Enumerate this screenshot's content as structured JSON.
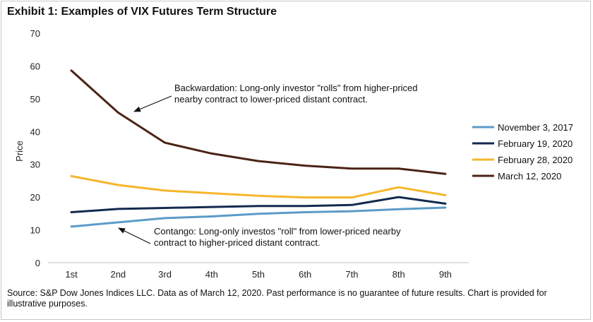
{
  "title": "Exhibit 1: Examples of VIX Futures Term Structure",
  "source_note": "Source: S&P Dow Jones Indices LLC. Data as of March 12, 2020. Past performance is no guarantee of future results. Chart is provided for illustrative purposes.",
  "chart_data": {
    "type": "line",
    "title": "Exhibit 1: Examples of VIX Futures Term Structure",
    "xlabel": "",
    "ylabel": "Price",
    "categories": [
      "1st",
      "2nd",
      "3rd",
      "4th",
      "5th",
      "6th",
      "7th",
      "8th",
      "9th"
    ],
    "ylim": [
      0,
      70
    ],
    "yticks": [
      0,
      10,
      20,
      30,
      40,
      50,
      60,
      70
    ],
    "grid": false,
    "legend_position": "right",
    "series": [
      {
        "name": "November 3, 2017",
        "color": "#5b9bc8",
        "values": [
          11.0,
          12.3,
          13.6,
          14.1,
          14.9,
          15.4,
          15.7,
          16.3,
          16.8
        ]
      },
      {
        "name": "February 19, 2020",
        "color": "#132a4f",
        "values": [
          15.4,
          16.4,
          16.7,
          17.0,
          17.3,
          17.3,
          17.6,
          20.0,
          18.0
        ]
      },
      {
        "name": "February 28, 2020",
        "color": "#f6b62b",
        "values": [
          26.4,
          23.7,
          22.0,
          21.2,
          20.4,
          19.9,
          19.9,
          23.0,
          20.6
        ]
      },
      {
        "name": "March 12, 2020",
        "color": "#4a2416",
        "values": [
          58.6,
          45.8,
          36.6,
          33.3,
          31.0,
          29.6,
          28.7,
          28.7,
          27.1
        ]
      }
    ],
    "annotations": [
      {
        "name": "backwardation",
        "lines": [
          "Backwardation: Long-only investor \"rolls\" from higher-priced",
          "nearby contract to lower-priced distant contract."
        ],
        "points_to_category": "2nd",
        "points_to_value": 46.5
      },
      {
        "name": "contango",
        "lines": [
          "Contango: Long-only investos \"roll\" from lower-priced nearby",
          "contract to higher-priced distant contract."
        ],
        "points_to_category": "2nd",
        "points_to_value": 11.5
      }
    ]
  }
}
